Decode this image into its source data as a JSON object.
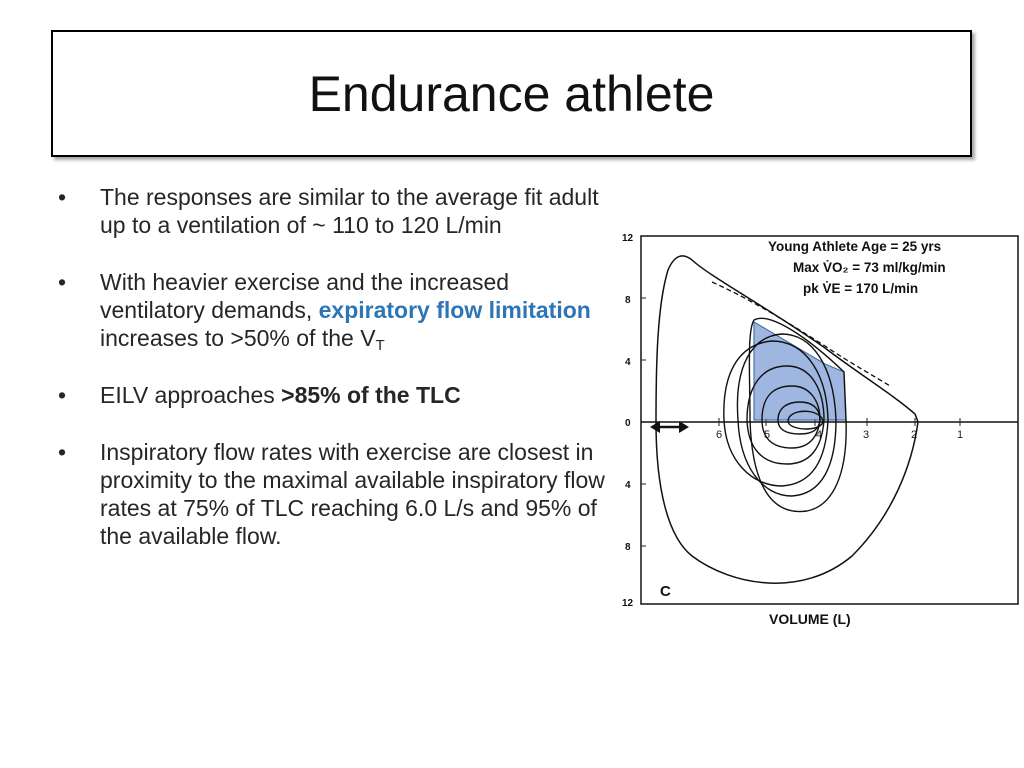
{
  "slide": {
    "title": "Endurance athlete",
    "bullets": [
      {
        "marker": "•",
        "text": "The responses are similar to the average fit adult up to a ventilation of ~ 110 to 120 L/min"
      },
      {
        "marker": "•",
        "pre": "With heavier exercise and the increased ventilatory demands, ",
        "highlight": "expiratory flow limitation",
        "post": " increases to >50% of the V",
        "sub": "T"
      },
      {
        "marker": "•",
        "pre": "EILV approaches ",
        "bold": ">85% of the TLC"
      },
      {
        "marker": "•",
        "text": "Inspiratory flow rates with exercise are closest in proximity to the maximal available inspiratory flow rates at 75% of TLC reaching 6.0 L/s and 95% of the available flow."
      }
    ],
    "colors": {
      "highlight_blue": "#2e75b6",
      "shaded_region": "#8eaadb"
    }
  },
  "figure": {
    "legend": [
      "Young Athlete Age = 25 yrs",
      "Max V̇O₂ = 73 ml/kg/min",
      "pk V̇E = 170 L/min"
    ],
    "panel_label": "C",
    "x_axis_label": "VOLUME (L)",
    "x_ticks": [
      "6",
      "5",
      "4",
      "3",
      "2",
      "1"
    ],
    "y_ticks_top": [
      "12",
      "8",
      "4",
      "0"
    ],
    "y_ticks_bottom": [
      "4",
      "8",
      "12"
    ],
    "arrow_icon": "double-headed-arrow"
  },
  "chart_data": {
    "type": "line",
    "title": "",
    "xlabel": "VOLUME (L)",
    "ylabel": "",
    "x_reversed": true,
    "xlim": [
      7,
      0.5
    ],
    "ylim": [
      -12,
      12
    ],
    "grid": false,
    "annotations": [
      "Young Athlete Age = 25 yrs",
      "Max V̇O₂ = 73 ml/kg/min",
      "pk V̇E = 170 L/min",
      "C"
    ],
    "series": [
      {
        "kind": "maximal flow-volume envelope",
        "points": [
          [
            6.5,
            0
          ],
          [
            6.4,
            6
          ],
          [
            5.9,
            10.5
          ],
          [
            5.5,
            9.5
          ],
          [
            4.5,
            7
          ],
          [
            3.3,
            5
          ],
          [
            2.5,
            2
          ],
          [
            2.0,
            0
          ],
          [
            2.5,
            -4
          ],
          [
            3.5,
            -9
          ],
          [
            4.5,
            -10.5
          ],
          [
            5.5,
            -10
          ],
          [
            6.5,
            -6
          ],
          [
            6.5,
            0
          ]
        ]
      },
      {
        "kind": "exercise tidal loop (largest)",
        "points": [
          [
            5.2,
            0
          ],
          [
            5.0,
            3.5
          ],
          [
            4.2,
            3.8
          ],
          [
            3.1,
            3
          ],
          [
            3.0,
            0
          ],
          [
            3.4,
            -5.5
          ],
          [
            4.2,
            -6
          ],
          [
            5.0,
            -4
          ],
          [
            5.2,
            0
          ]
        ]
      },
      {
        "kind": "exercise tidal loop (smallest)",
        "points": [
          [
            4.4,
            0
          ],
          [
            4.0,
            0.5
          ],
          [
            3.5,
            0
          ],
          [
            4.0,
            -0.5
          ],
          [
            4.4,
            0
          ]
        ]
      }
    ]
  }
}
